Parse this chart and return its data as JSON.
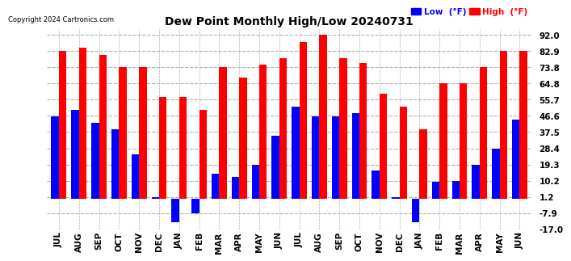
{
  "title": "Dew Point Monthly High/Low 20240731",
  "copyright": "Copyright 2024 Cartronics.com",
  "categories": [
    "JUL",
    "AUG",
    "SEP",
    "OCT",
    "NOV",
    "DEC",
    "JAN",
    "FEB",
    "MAR",
    "APR",
    "MAY",
    "JUN",
    "JUL",
    "AUG",
    "SEP",
    "OCT",
    "NOV",
    "DEC",
    "JAN",
    "FEB",
    "MAR",
    "APR",
    "MAY",
    "JUN"
  ],
  "high_values": [
    82.9,
    84.9,
    80.9,
    73.8,
    73.8,
    57.2,
    57.2,
    50.0,
    73.8,
    68.0,
    75.2,
    78.8,
    87.8,
    92.0,
    78.8,
    76.1,
    59.0,
    51.8,
    39.2,
    64.8,
    64.8,
    73.8,
    82.9,
    82.9
  ],
  "low_values": [
    46.4,
    50.0,
    42.8,
    39.2,
    24.8,
    1.2,
    -13.0,
    -7.9,
    14.0,
    12.2,
    19.3,
    35.6,
    51.8,
    46.4,
    46.4,
    48.2,
    16.0,
    1.2,
    -13.0,
    9.5,
    10.2,
    19.3,
    28.4,
    44.6
  ],
  "high_color": "#ff0000",
  "low_color": "#0000ff",
  "background_color": "#ffffff",
  "grid_color": "#b0b0b0",
  "yticks": [
    92.0,
    82.9,
    73.8,
    64.8,
    55.7,
    46.6,
    37.5,
    28.4,
    19.3,
    10.2,
    1.2,
    -7.9,
    -17.0
  ],
  "ymin": -17.0,
  "ymax": 95.0,
  "bar_width": 0.38
}
